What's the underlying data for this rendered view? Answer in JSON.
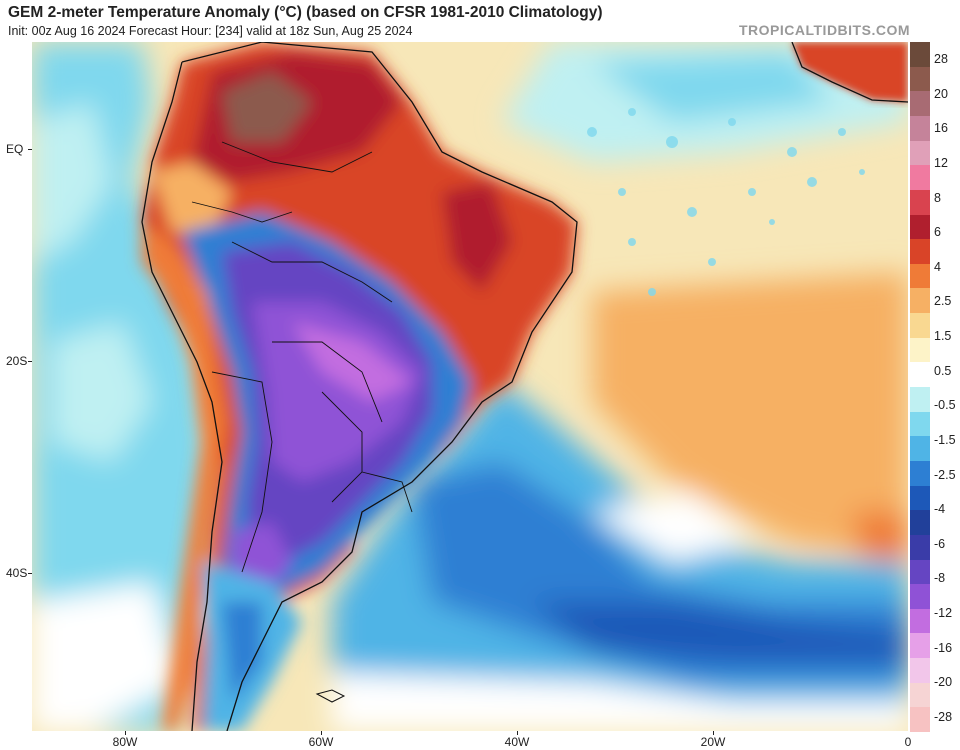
{
  "header": {
    "title": "GEM 2-meter Temperature Anomaly (°C) (based on CFSR 1981-2010 Climatology)",
    "subtitle": "Init: 00z Aug 16 2024   Forecast Hour: [234]   valid at 18z Sun, Aug 25 2024",
    "credit": "TROPICALTIDBITS.COM"
  },
  "axes": {
    "lat_labels": [
      "EQ",
      "20S",
      "40S"
    ],
    "lon_labels": [
      "80W",
      "60W",
      "40W",
      "20W",
      "0"
    ]
  },
  "colorbar": {
    "labels": [
      "28",
      "20",
      "16",
      "12",
      "8",
      "6",
      "4",
      "2.5",
      "1.5",
      "0.5",
      "-0.5",
      "-1.5",
      "-2.5",
      "-4",
      "-6",
      "-8",
      "-12",
      "-16",
      "-20",
      "-28"
    ],
    "colors": [
      "#6b4a3a",
      "#8c5a4d",
      "#a86b73",
      "#c5839a",
      "#e0a0b8",
      "#f07aa0",
      "#d9434f",
      "#b01f2e",
      "#d94428",
      "#ef7b37",
      "#f6b064",
      "#f9d891",
      "#fdf3c8",
      "#ffffff",
      "#bff0f2",
      "#7fd8ee",
      "#4fb4e6",
      "#2d7fd3",
      "#1d58b8",
      "#21409a",
      "#3a3ca8",
      "#6545c2",
      "#8f52d6",
      "#c26de0",
      "#e6a0e8",
      "#f2c6ea",
      "#f6d4d4",
      "#f7c2c2"
    ]
  }
}
